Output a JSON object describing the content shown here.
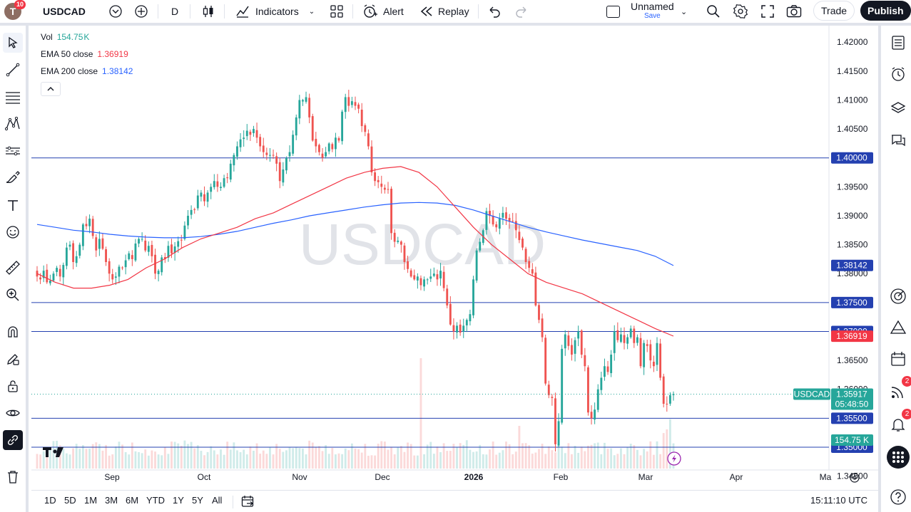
{
  "topbar": {
    "avatar_letter": "T",
    "avatar_badge": "10",
    "symbol": "USDCAD",
    "interval": "D",
    "indicators_label": "Indicators",
    "alert_label": "Alert",
    "replay_label": "Replay",
    "layout_name": "Unnamed",
    "layout_sub": "Save",
    "trade_label": "Trade",
    "publish_label": "Publish"
  },
  "legend": {
    "vol_name": "Vol",
    "vol_value": "154.75",
    "vol_unit": "K",
    "ema50_name": "EMA 50 close",
    "ema50_value": "1.36919",
    "ema200_name": "EMA 200 close",
    "ema200_value": "1.38142"
  },
  "watermark": "USDCAD",
  "bottombar": {
    "ranges": [
      "1D",
      "5D",
      "1M",
      "3M",
      "6M",
      "YTD",
      "1Y",
      "5Y",
      "All"
    ],
    "clock": "15:11:10 UTC"
  },
  "rightbar": {
    "signals_badge": "2",
    "alerts_badge": "2"
  },
  "colors": {
    "up": "#26a69a",
    "down": "#ef5350",
    "ema50": "#f23645",
    "ema200": "#2962ff",
    "hline": "#2440b0",
    "label_blue": "#2440b0",
    "accent": "#2962ff"
  },
  "chart_data": {
    "type": "candlestick",
    "symbol": "USDCAD",
    "interval": "D",
    "ylim": [
      1.34286,
      1.42286
    ],
    "price_ticks": [
      "1.42000",
      "1.41500",
      "1.41000",
      "1.40500",
      "1.40000",
      "1.39500",
      "1.39000",
      "1.38500",
      "1.38000",
      "1.37500",
      "1.37000",
      "1.36500",
      "1.36000",
      "1.35500",
      "1.35000",
      "1.34500"
    ],
    "time_ticks": [
      "Sep",
      "Oct",
      "Nov",
      "Dec",
      "2026",
      "Feb",
      "Mar",
      "Apr",
      "Ma"
    ],
    "bold_time_tick": "2026",
    "horizontal_lines": [
      {
        "price": 1.4,
        "label": "1.40000"
      },
      {
        "price": 1.375,
        "label": "1.37500"
      },
      {
        "price": 1.37,
        "label": "1.37000"
      },
      {
        "price": 1.355,
        "label": "1.35500"
      },
      {
        "price": 1.35,
        "label": "1.35000"
      }
    ],
    "ema50_label": "1.36919",
    "ema200_label": "1.38142",
    "last_price": {
      "symbol": "USDCAD",
      "price": "1.35917",
      "countdown": "05:48:50"
    },
    "volume_label": "154.75 K",
    "closes": [
      1.3795,
      1.379,
      1.3805,
      1.3785,
      1.3788,
      1.38,
      1.381,
      1.3795,
      1.3815,
      1.3845,
      1.385,
      1.382,
      1.383,
      1.385,
      1.3885,
      1.3882,
      1.3895,
      1.3865,
      1.384,
      1.386,
      1.3843,
      1.382,
      1.38,
      1.379,
      1.3795,
      1.3812,
      1.381,
      1.3823,
      1.3835,
      1.3825,
      1.3852,
      1.386,
      1.386,
      1.384,
      1.3848,
      1.383,
      1.38,
      1.3805,
      1.3828,
      1.3825,
      1.3848,
      1.3835,
      1.3847,
      1.3856,
      1.3858,
      1.3883,
      1.39,
      1.391,
      1.391,
      1.3935,
      1.394,
      1.3925,
      1.394,
      1.395,
      1.396,
      1.395,
      1.395,
      1.3965,
      1.3965,
      1.399,
      1.4005,
      1.402,
      1.4032,
      1.4035,
      1.4047,
      1.404,
      1.405,
      1.4035,
      1.402,
      1.401,
      1.4005,
      1.4005,
      1.4005,
      1.399,
      1.396,
      1.398,
      1.4,
      1.401,
      1.404,
      1.407,
      1.41,
      1.41,
      1.4105,
      1.407,
      1.403,
      1.402,
      1.401,
      1.4,
      1.401,
      1.4025,
      1.4015,
      1.4035,
      1.403,
      1.408,
      1.4105,
      1.409,
      1.4098,
      1.409,
      1.4085,
      1.4055,
      1.4045,
      1.402,
      1.3975,
      1.396,
      1.3958,
      1.395,
      1.3945,
      1.3945,
      1.387,
      1.3855,
      1.3857,
      1.385,
      1.382,
      1.3808,
      1.3795,
      1.379,
      1.3795,
      1.378,
      1.379,
      1.379,
      1.3795,
      1.38,
      1.379,
      1.3805,
      1.3775,
      1.3745,
      1.3712,
      1.37,
      1.371,
      1.3698,
      1.371,
      1.372,
      1.373,
      1.379,
      1.384,
      1.3855,
      1.3875,
      1.3908,
      1.39,
      1.3885,
      1.388,
      1.3895,
      1.3905,
      1.3895,
      1.389,
      1.389,
      1.3875,
      1.3858,
      1.3845,
      1.382,
      1.381,
      1.38,
      1.3745,
      1.372,
      1.369,
      1.361,
      1.359,
      1.3585,
      1.3505,
      1.3545,
      1.367,
      1.3695,
      1.3675,
      1.366,
      1.3685,
      1.37,
      1.366,
      1.364,
      1.356,
      1.355,
      1.3565,
      1.36,
      1.362,
      1.364,
      1.363,
      1.366,
      1.37,
      1.3685,
      1.3695,
      1.368,
      1.369,
      1.3705,
      1.368,
      1.369,
      1.364,
      1.368,
      1.3675,
      1.365,
      1.364,
      1.368,
      1.362,
      1.3575,
      1.3575,
      1.359,
      1.3592
    ],
    "ema50": [
      1.38,
      1.3785,
      1.3775,
      1.3775,
      1.378,
      1.379,
      1.381,
      1.3825,
      1.3845,
      1.386,
      1.387,
      1.388,
      1.3895,
      1.3905,
      1.392,
      1.3935,
      1.395,
      1.3965,
      1.3975,
      1.3982,
      1.3985,
      1.3975,
      1.395,
      1.3915,
      1.388,
      1.385,
      1.3825,
      1.38,
      1.3785,
      1.3775,
      1.3765,
      1.375,
      1.3735,
      1.372,
      1.3705,
      1.3692
    ],
    "ema200": [
      1.3885,
      1.388,
      1.3875,
      1.3872,
      1.3868,
      1.3865,
      1.3863,
      1.3862,
      1.3862,
      1.3864,
      1.3868,
      1.3873,
      1.388,
      1.3887,
      1.3893,
      1.39,
      1.3905,
      1.391,
      1.3915,
      1.3919,
      1.3922,
      1.3923,
      1.3922,
      1.3918,
      1.391,
      1.39,
      1.389,
      1.388,
      1.3872,
      1.3865,
      1.3858,
      1.3852,
      1.3846,
      1.384,
      1.383,
      1.3814
    ]
  }
}
